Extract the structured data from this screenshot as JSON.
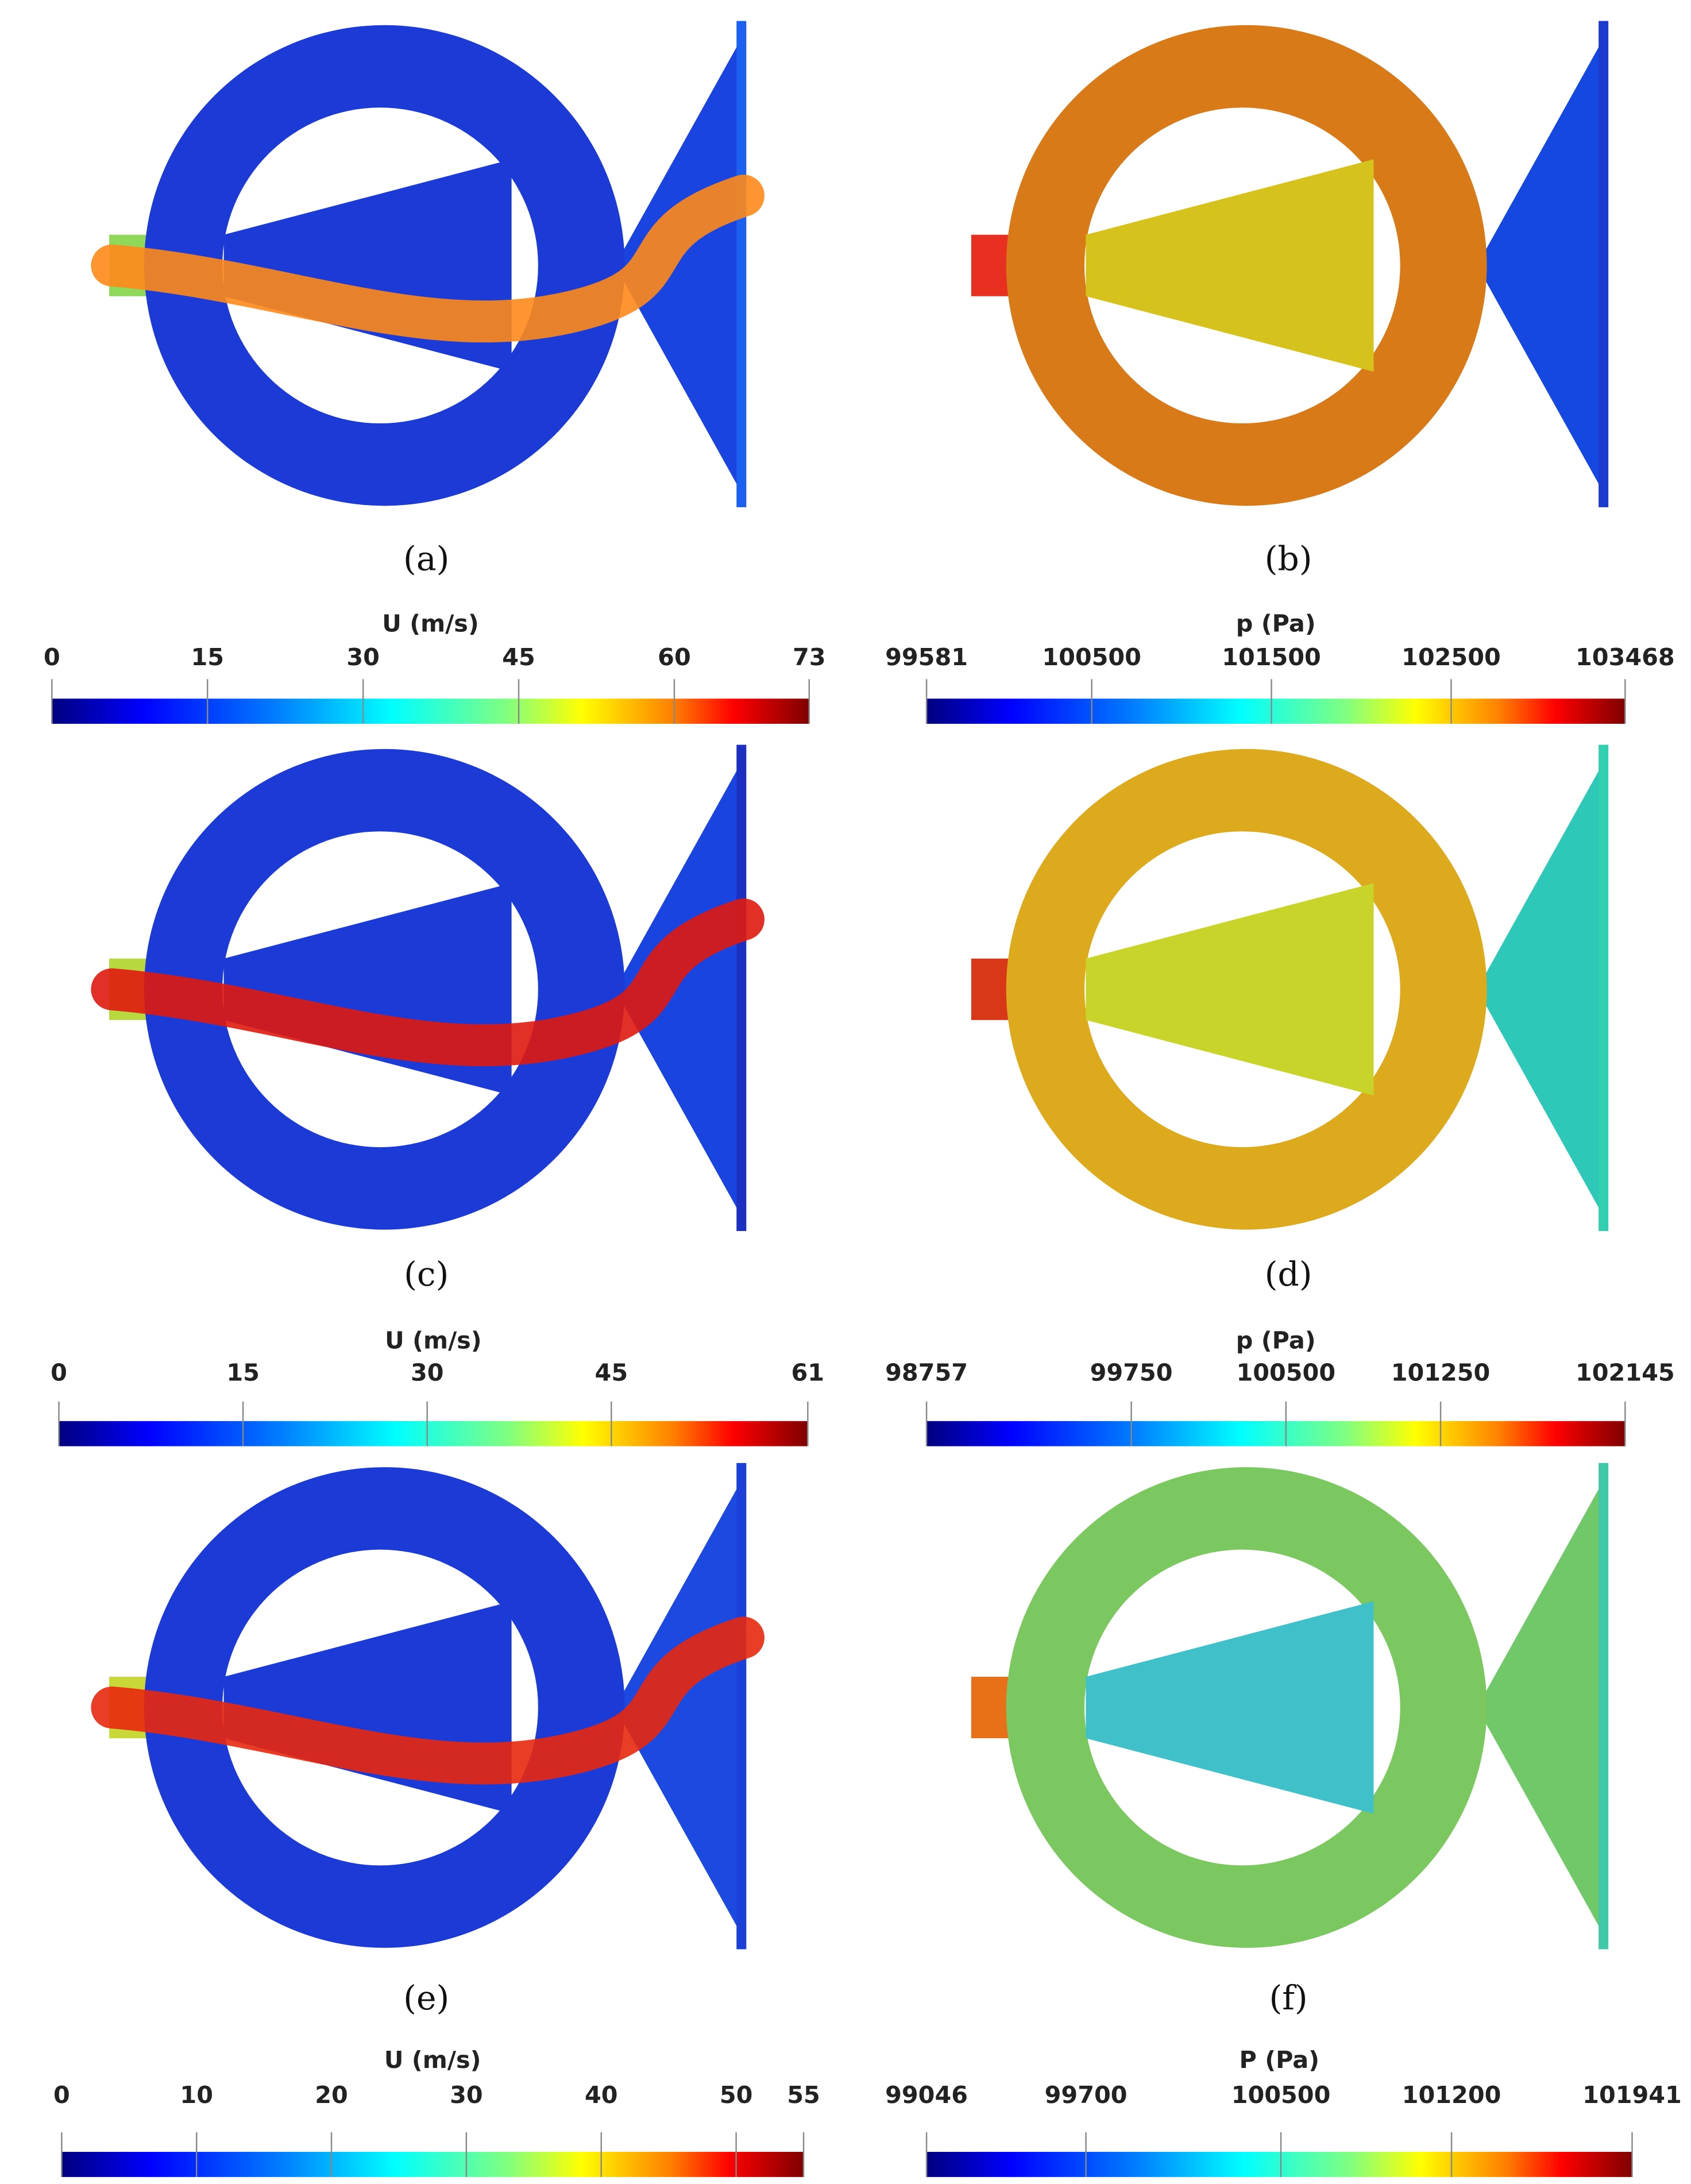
{
  "panels": [
    {
      "label": "(a)"
    },
    {
      "label": "(b)"
    },
    {
      "label": "(c)"
    },
    {
      "label": "(d)"
    },
    {
      "label": "(e)"
    },
    {
      "label": "(f)"
    }
  ],
  "colorbars": [
    {
      "title": "U (m/s)",
      "range": [
        0,
        73
      ],
      "ticks": [
        0,
        15,
        30,
        45,
        60,
        73
      ]
    },
    {
      "title": "p (Pa)",
      "range": [
        99581,
        103468
      ],
      "ticks": [
        99581,
        100500,
        101500,
        102500,
        103468
      ]
    },
    {
      "title": "U (m/s)",
      "range": [
        0,
        61
      ],
      "ticks": [
        0,
        15,
        30,
        45,
        61
      ]
    },
    {
      "title": "p (Pa)",
      "range": [
        98757,
        102145
      ],
      "ticks": [
        98757,
        99750,
        100500,
        101250,
        102145
      ]
    },
    {
      "title": "U (m/s)",
      "range": [
        0,
        55
      ],
      "ticks": [
        0,
        10,
        20,
        30,
        40,
        50,
        55
      ]
    },
    {
      "title": "P (Pa)",
      "range": [
        99046,
        101941
      ],
      "ticks": [
        99046,
        99700,
        100500,
        101200,
        101941
      ]
    }
  ]
}
